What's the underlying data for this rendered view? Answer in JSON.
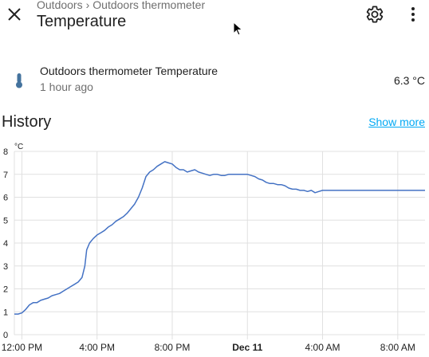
{
  "header": {
    "breadcrumb": [
      "Outdoors",
      "Outdoors thermometer"
    ],
    "breadcrumb_separator": "›",
    "title": "Temperature",
    "icons": [
      "close-icon",
      "gear-icon",
      "dots-vertical-icon"
    ]
  },
  "entity": {
    "icon": "thermometer-icon",
    "name": "Outdoors thermometer Temperature",
    "last_changed": "1 hour ago",
    "state": "6.3 °C"
  },
  "history": {
    "title": "History",
    "show_more_label": "Show more"
  },
  "colors": {
    "accent": "#03a9f4",
    "line": "#4472c4",
    "icon": "#44739e",
    "grid": "#e0e0e0"
  },
  "chart_data": {
    "type": "line",
    "unit": "°C",
    "ylim": [
      0,
      8
    ],
    "yticks": [
      0,
      1,
      2,
      3,
      4,
      5,
      6,
      7,
      8
    ],
    "xlim": [
      11.6,
      33.45
    ],
    "xticks": [
      {
        "x": 12,
        "label": "12:00 PM",
        "bold": false
      },
      {
        "x": 16,
        "label": "4:00 PM",
        "bold": false
      },
      {
        "x": 20,
        "label": "8:00 PM",
        "bold": false
      },
      {
        "x": 24,
        "label": "Dec 11",
        "bold": true
      },
      {
        "x": 28,
        "label": "4:00 AM",
        "bold": false
      },
      {
        "x": 32,
        "label": "8:00 AM",
        "bold": false
      }
    ],
    "grid": true,
    "series": [
      {
        "points": [
          [
            11.6,
            0.9
          ],
          [
            11.8,
            0.9
          ],
          [
            12.0,
            0.95
          ],
          [
            12.2,
            1.1
          ],
          [
            12.4,
            1.3
          ],
          [
            12.6,
            1.4
          ],
          [
            12.8,
            1.4
          ],
          [
            13.0,
            1.5
          ],
          [
            13.2,
            1.55
          ],
          [
            13.4,
            1.6
          ],
          [
            13.6,
            1.7
          ],
          [
            13.8,
            1.75
          ],
          [
            14.0,
            1.8
          ],
          [
            14.2,
            1.9
          ],
          [
            14.4,
            2.0
          ],
          [
            14.6,
            2.1
          ],
          [
            14.8,
            2.2
          ],
          [
            15.0,
            2.3
          ],
          [
            15.2,
            2.5
          ],
          [
            15.35,
            3.0
          ],
          [
            15.45,
            3.7
          ],
          [
            15.6,
            4.0
          ],
          [
            15.8,
            4.2
          ],
          [
            16.0,
            4.35
          ],
          [
            16.2,
            4.45
          ],
          [
            16.4,
            4.55
          ],
          [
            16.6,
            4.7
          ],
          [
            16.8,
            4.8
          ],
          [
            17.0,
            4.95
          ],
          [
            17.2,
            5.05
          ],
          [
            17.4,
            5.15
          ],
          [
            17.6,
            5.3
          ],
          [
            17.8,
            5.5
          ],
          [
            18.0,
            5.7
          ],
          [
            18.2,
            6.0
          ],
          [
            18.4,
            6.4
          ],
          [
            18.6,
            6.9
          ],
          [
            18.8,
            7.1
          ],
          [
            19.0,
            7.2
          ],
          [
            19.2,
            7.35
          ],
          [
            19.4,
            7.45
          ],
          [
            19.6,
            7.55
          ],
          [
            19.8,
            7.5
          ],
          [
            20.0,
            7.45
          ],
          [
            20.2,
            7.3
          ],
          [
            20.4,
            7.2
          ],
          [
            20.6,
            7.2
          ],
          [
            20.8,
            7.1
          ],
          [
            21.0,
            7.15
          ],
          [
            21.2,
            7.2
          ],
          [
            21.4,
            7.1
          ],
          [
            21.6,
            7.05
          ],
          [
            21.8,
            7.0
          ],
          [
            22.0,
            6.95
          ],
          [
            22.2,
            7.0
          ],
          [
            22.4,
            7.0
          ],
          [
            22.6,
            6.95
          ],
          [
            22.8,
            6.95
          ],
          [
            23.0,
            7.0
          ],
          [
            23.2,
            7.0
          ],
          [
            23.4,
            7.0
          ],
          [
            23.6,
            7.0
          ],
          [
            23.8,
            7.0
          ],
          [
            24.0,
            7.0
          ],
          [
            24.2,
            6.95
          ],
          [
            24.4,
            6.9
          ],
          [
            24.6,
            6.8
          ],
          [
            24.8,
            6.75
          ],
          [
            25.0,
            6.65
          ],
          [
            25.2,
            6.6
          ],
          [
            25.4,
            6.6
          ],
          [
            25.6,
            6.55
          ],
          [
            25.8,
            6.55
          ],
          [
            26.0,
            6.5
          ],
          [
            26.2,
            6.4
          ],
          [
            26.4,
            6.35
          ],
          [
            26.6,
            6.35
          ],
          [
            26.8,
            6.3
          ],
          [
            27.0,
            6.3
          ],
          [
            27.2,
            6.25
          ],
          [
            27.4,
            6.3
          ],
          [
            27.6,
            6.2
          ],
          [
            27.8,
            6.25
          ],
          [
            28.0,
            6.3
          ],
          [
            28.2,
            6.3
          ],
          [
            28.4,
            6.3
          ],
          [
            28.6,
            6.3
          ],
          [
            29.0,
            6.3
          ],
          [
            29.5,
            6.3
          ],
          [
            30.0,
            6.3
          ],
          [
            30.5,
            6.3
          ],
          [
            31.0,
            6.3
          ],
          [
            31.5,
            6.3
          ],
          [
            32.0,
            6.3
          ],
          [
            32.5,
            6.3
          ],
          [
            33.0,
            6.3
          ],
          [
            33.45,
            6.3
          ]
        ]
      }
    ]
  }
}
